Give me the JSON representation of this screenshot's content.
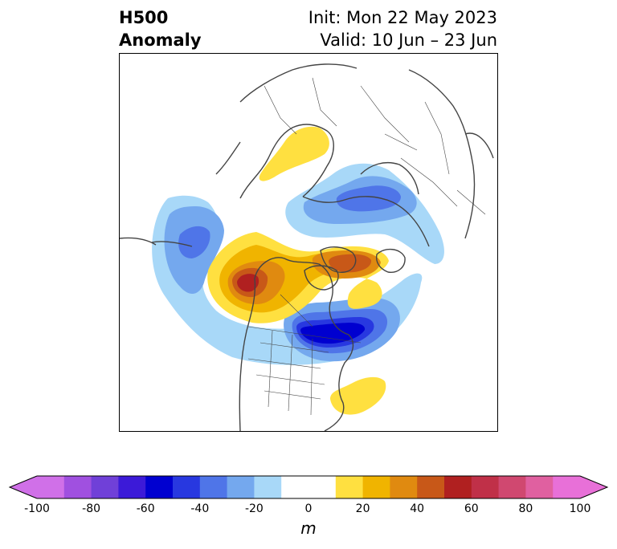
{
  "title": {
    "left_line1": "H500",
    "left_line2": "Anomaly",
    "init": "Init: Mon 22 May 2023",
    "valid": "Valid: 10 Jun – 23 Jun"
  },
  "colorbar": {
    "unit": "m",
    "ticks": [
      "-100",
      "-80",
      "-60",
      "-40",
      "-20",
      "0",
      "20",
      "40",
      "60",
      "80",
      "100"
    ],
    "colors": [
      "#d070e8",
      "#a050e0",
      "#7040d8",
      "#3c1ad8",
      "#0000d0",
      "#2838e0",
      "#4f75e8",
      "#74a8ee",
      "#a8d8f8",
      "#ffffff",
      "#ffffff",
      "#ffe040",
      "#f0b400",
      "#e08a10",
      "#c85818",
      "#b02020",
      "#c03048",
      "#d04870",
      "#e060a0",
      "#e870d8"
    ]
  },
  "colors": {
    "land_outline": "#444444",
    "border": "#000000"
  }
}
